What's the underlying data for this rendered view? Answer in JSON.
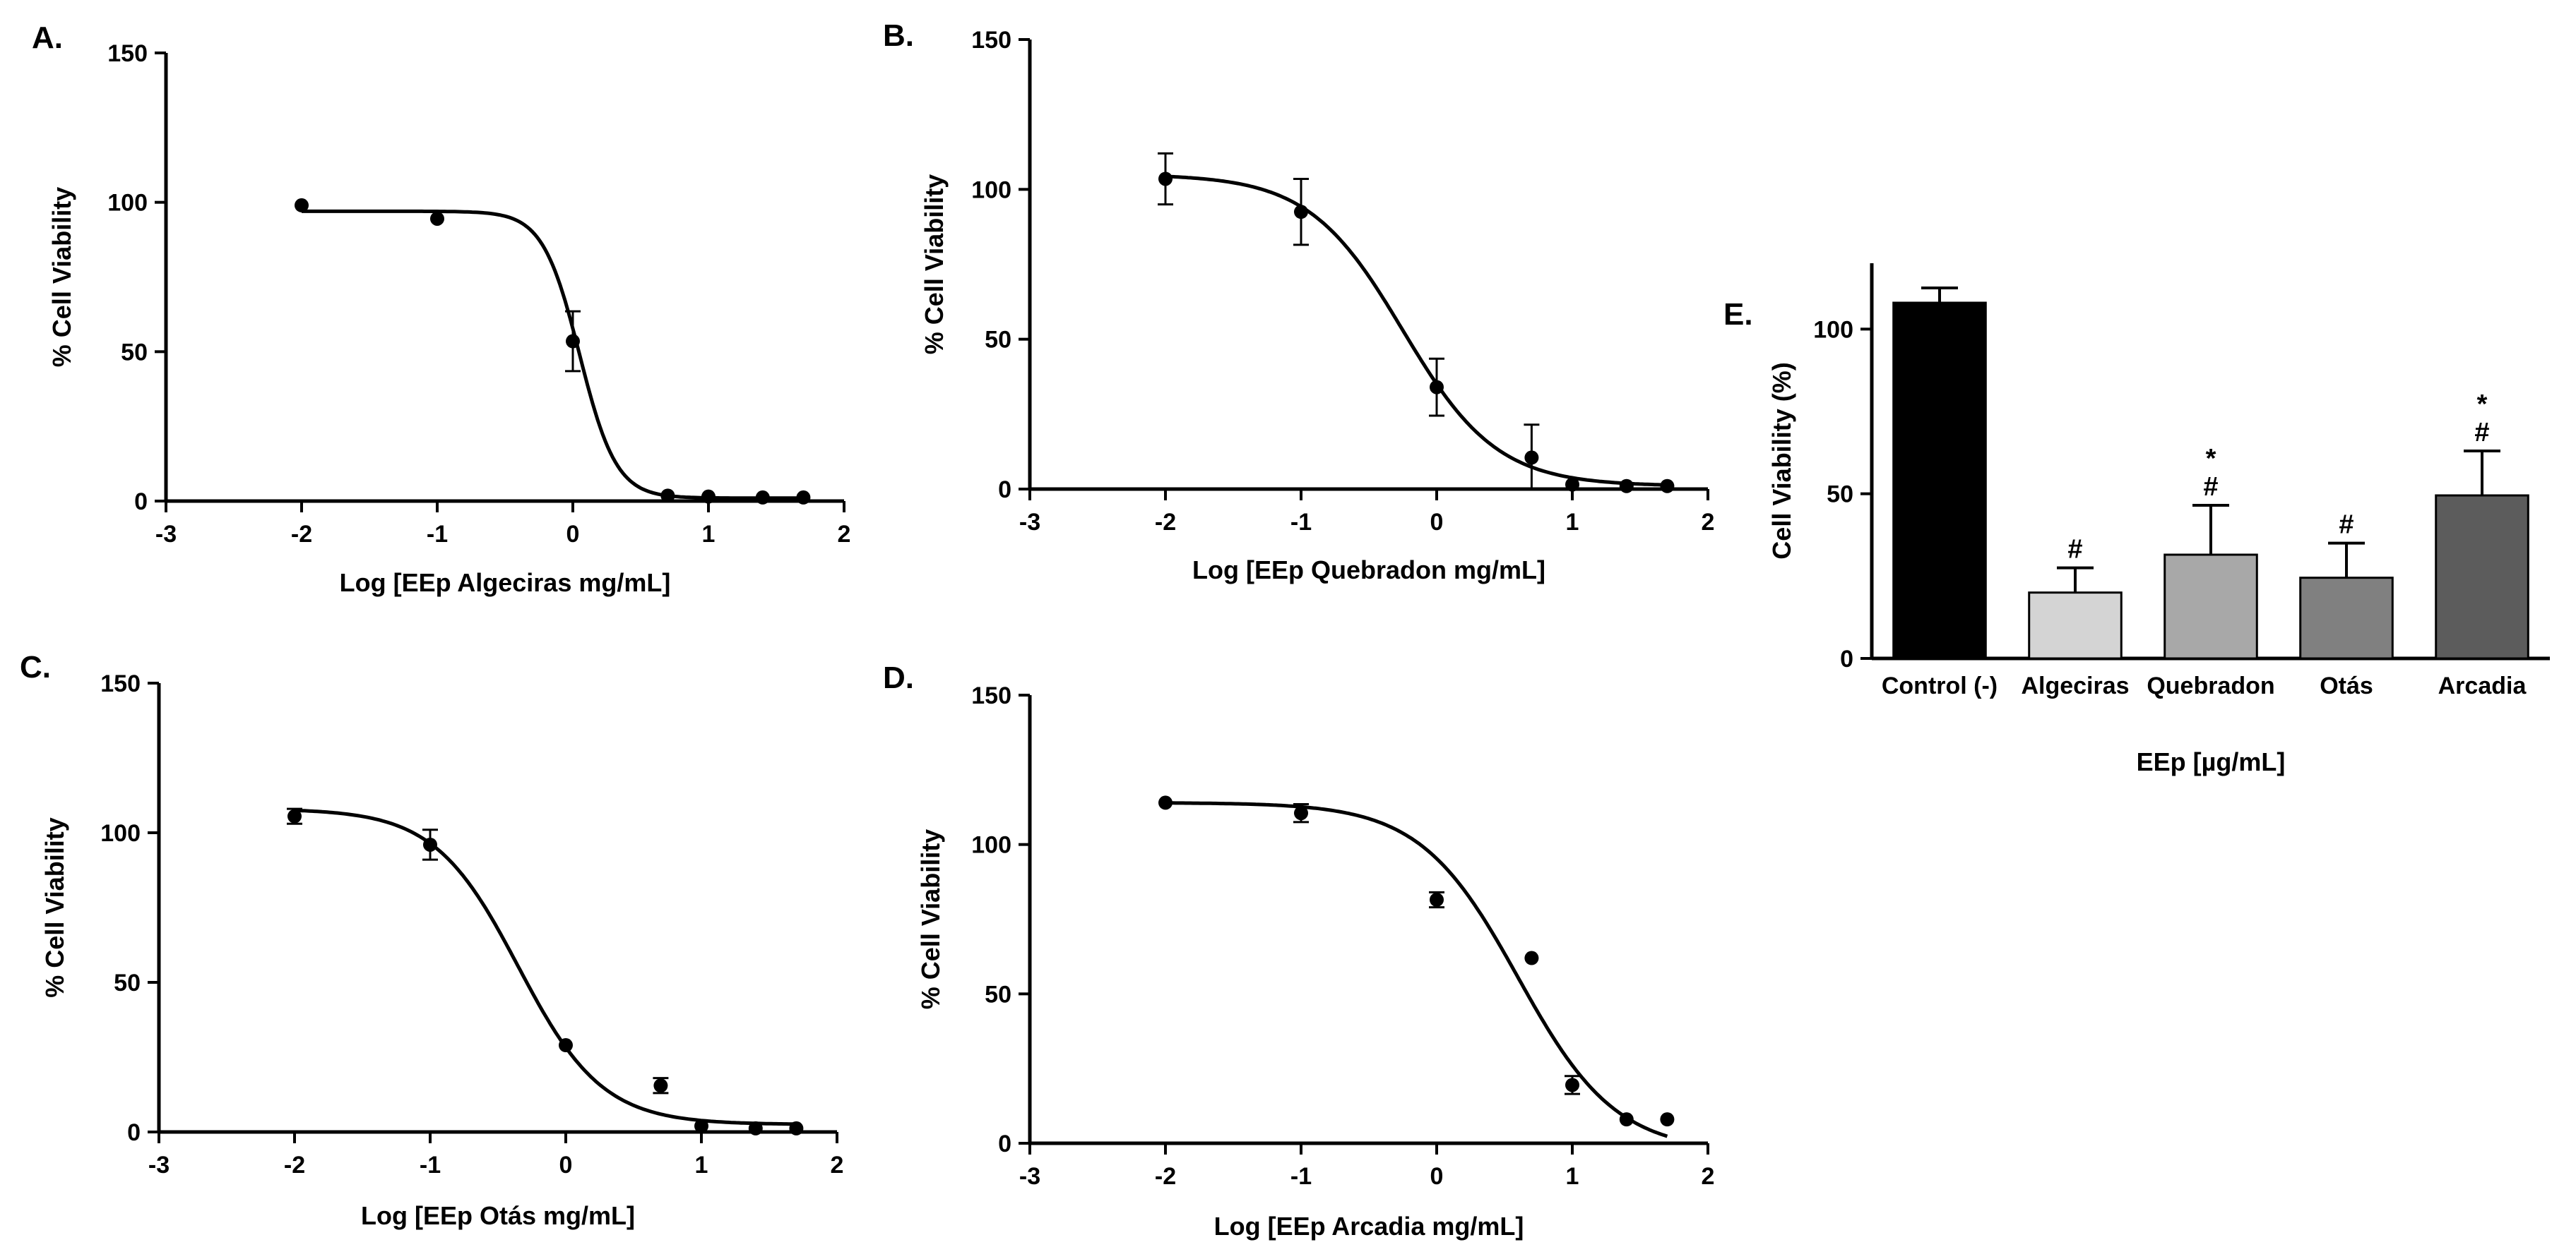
{
  "chart_data": [
    {
      "id": "A",
      "panel_label": "A.",
      "type": "scatter",
      "xlabel": "Log [EEp Algeciras mg/mL]",
      "ylabel": "% Cell Viability",
      "xlim": [
        -3,
        2
      ],
      "ylim": [
        0,
        150
      ],
      "xticks": [
        -3,
        -2,
        -1,
        0,
        1,
        2
      ],
      "yticks": [
        0,
        50,
        100,
        150
      ],
      "points": [
        {
          "x": -2,
          "y": 99,
          "err": 0
        },
        {
          "x": -1,
          "y": 94.5,
          "err": 0
        },
        {
          "x": 0,
          "y": 53.5,
          "err": 10
        },
        {
          "x": 0.7,
          "y": 1.8,
          "err": 0
        },
        {
          "x": 1.0,
          "y": 1.5,
          "err": 0
        },
        {
          "x": 1.4,
          "y": 1.2,
          "err": 0
        },
        {
          "x": 1.7,
          "y": 1.2,
          "err": 0
        }
      ],
      "fit": {
        "top": 97,
        "bottom": 1,
        "logIC50": 0.05,
        "hill": 3.2
      }
    },
    {
      "id": "B",
      "panel_label": "B.",
      "type": "scatter",
      "xlabel": "Log [EEp Quebradon mg/mL]",
      "ylabel": "% Cell Viability",
      "xlim": [
        -3,
        2
      ],
      "ylim": [
        0,
        150
      ],
      "xticks": [
        -3,
        -2,
        -1,
        0,
        1,
        2
      ],
      "yticks": [
        0,
        50,
        100,
        150
      ],
      "points": [
        {
          "x": -2,
          "y": 103.5,
          "err": 8.5
        },
        {
          "x": -1,
          "y": 92.5,
          "err": 11
        },
        {
          "x": 0,
          "y": 34,
          "err": 9.5
        },
        {
          "x": 0.7,
          "y": 10.5,
          "err": 11
        },
        {
          "x": 1.0,
          "y": 1.5,
          "err": 0
        },
        {
          "x": 1.4,
          "y": 1.0,
          "err": 0
        },
        {
          "x": 1.7,
          "y": 1.0,
          "err": 0
        }
      ],
      "fit": {
        "top": 105,
        "bottom": 1,
        "logIC50": -0.25,
        "hill": 1.25
      }
    },
    {
      "id": "C",
      "panel_label": "C.",
      "type": "scatter",
      "xlabel": "Log [EEp Otás mg/mL]",
      "ylabel": "% Cell Viability",
      "xlim": [
        -3,
        2
      ],
      "ylim": [
        0,
        150
      ],
      "xticks": [
        -3,
        -2,
        -1,
        0,
        1,
        2
      ],
      "yticks": [
        0,
        50,
        100,
        150
      ],
      "points": [
        {
          "x": -2,
          "y": 105.5,
          "err": 2.5
        },
        {
          "x": -1,
          "y": 96,
          "err": 5
        },
        {
          "x": 0,
          "y": 29,
          "err": 0
        },
        {
          "x": 0.7,
          "y": 15.5,
          "err": 2.5
        },
        {
          "x": 1.0,
          "y": 2.0,
          "err": 0
        },
        {
          "x": 1.4,
          "y": 1.2,
          "err": 0
        },
        {
          "x": 1.7,
          "y": 1.2,
          "err": 0
        }
      ],
      "fit": {
        "top": 108,
        "bottom": 2.5,
        "logIC50": -0.35,
        "hill": 1.4
      }
    },
    {
      "id": "D",
      "panel_label": "D.",
      "type": "scatter",
      "xlabel": "Log [EEp Arcadia mg/mL]",
      "ylabel": "% Cell Viability",
      "xlim": [
        -3,
        2
      ],
      "ylim": [
        0,
        150
      ],
      "xticks": [
        -3,
        -2,
        -1,
        0,
        1,
        2
      ],
      "yticks": [
        0,
        50,
        100,
        150
      ],
      "points": [
        {
          "x": -2,
          "y": 114,
          "err": 0
        },
        {
          "x": -1,
          "y": 110.5,
          "err": 3
        },
        {
          "x": 0,
          "y": 81.5,
          "err": 2.5
        },
        {
          "x": 0.7,
          "y": 62,
          "err": 0
        },
        {
          "x": 1.0,
          "y": 19.5,
          "err": 3
        },
        {
          "x": 1.4,
          "y": 8,
          "err": 0
        },
        {
          "x": 1.7,
          "y": 8,
          "err": 0
        }
      ],
      "fit": {
        "top": 114,
        "bottom": -3,
        "logIC50": 0.6,
        "hill": 1.2
      }
    },
    {
      "id": "E",
      "panel_label": "E.",
      "type": "bar",
      "xlabel": "EEp [µg/mL]",
      "ylabel": "Cell Viability (%)",
      "ylim": [
        0,
        120
      ],
      "yticks": [
        0,
        50,
        100
      ],
      "categories": [
        "Control (-)",
        "Algeciras",
        "Quebradon",
        "Otás",
        "Arcadia"
      ],
      "values": [
        108,
        20,
        31.5,
        24.5,
        49.5
      ],
      "errors": [
        4.5,
        7.5,
        15,
        10.5,
        13.5
      ],
      "annotations": [
        [],
        [
          "#"
        ],
        [
          "#",
          "*"
        ],
        [
          "#"
        ],
        [
          "#",
          "*"
        ]
      ],
      "colors": [
        "#000000",
        "#d4d4d4",
        "#a8a8a8",
        "#808080",
        "#5c5c5c"
      ]
    }
  ]
}
